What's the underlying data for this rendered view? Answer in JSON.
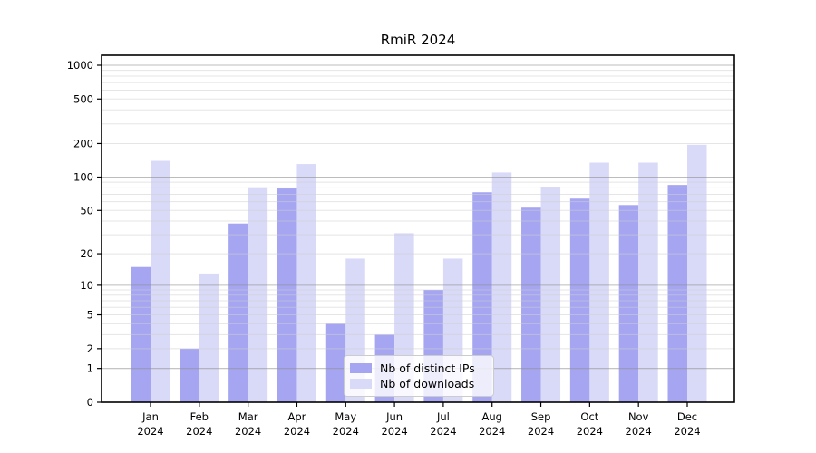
{
  "chart_data": {
    "type": "bar",
    "title": "RmiR 2024",
    "categories": [
      "Jan",
      "Feb",
      "Mar",
      "Apr",
      "May",
      "Jun",
      "Jul",
      "Aug",
      "Sep",
      "Oct",
      "Nov",
      "Dec"
    ],
    "category_year_line": "2024",
    "series": [
      {
        "name": "Nb of distinct IPs",
        "color": "#a5a5f1",
        "values": [
          15,
          2,
          38,
          79,
          4,
          3,
          9,
          73,
          53,
          64,
          56,
          85
        ]
      },
      {
        "name": "Nb of downloads",
        "color": "#d9d9f8",
        "values": [
          140,
          13,
          81,
          131,
          18,
          31,
          18,
          110,
          82,
          135,
          135,
          195
        ]
      }
    ],
    "xlabel": "",
    "ylabel": "",
    "yscale": "log1p",
    "yticks": [
      0,
      1,
      2,
      5,
      10,
      20,
      50,
      100,
      200,
      500,
      1000
    ],
    "ylim": [
      0,
      1225
    ],
    "grid": {
      "major": [
        1,
        10,
        100,
        1000
      ],
      "minor": [
        2,
        3,
        4,
        5,
        6,
        7,
        8,
        9,
        20,
        30,
        40,
        50,
        60,
        70,
        80,
        90,
        200,
        300,
        400,
        500,
        600,
        700,
        800,
        900
      ]
    },
    "legend_position": "lower center",
    "frame_color": "#000000",
    "text_color": "#000000"
  }
}
